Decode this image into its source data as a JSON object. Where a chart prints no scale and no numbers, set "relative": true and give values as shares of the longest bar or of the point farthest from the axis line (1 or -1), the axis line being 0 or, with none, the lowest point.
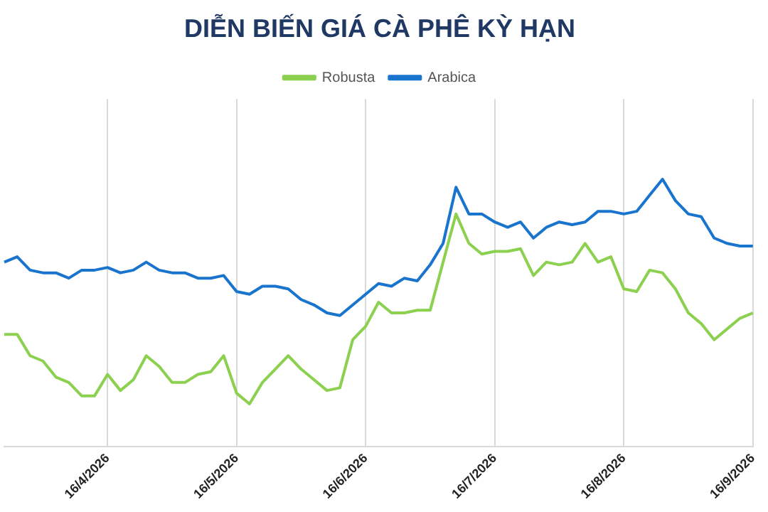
{
  "chart_data": {
    "type": "line",
    "title": "DIỄN BIẾN GIÁ CÀ PHÊ KỲ HẠN",
    "relative": true,
    "grid": "x",
    "legend": "top",
    "categories": [
      null,
      null,
      null,
      null,
      null,
      null,
      null,
      null,
      "16/4/2026",
      null,
      null,
      null,
      null,
      null,
      null,
      null,
      null,
      null,
      "16/5/2026",
      null,
      null,
      null,
      null,
      null,
      null,
      null,
      null,
      null,
      "16/6/2026",
      null,
      null,
      null,
      null,
      null,
      null,
      null,
      null,
      null,
      "16/7/2026",
      null,
      null,
      null,
      null,
      null,
      null,
      null,
      null,
      null,
      "16/8/2026",
      null,
      null,
      null,
      null,
      null,
      null,
      null,
      null,
      null,
      "16/9/2026"
    ],
    "series": [
      {
        "name": "Robusta",
        "color": "#8cd04f",
        "values": [
          0.42,
          0.42,
          0.34,
          0.32,
          0.26,
          0.24,
          0.19,
          0.19,
          0.27,
          0.21,
          0.25,
          0.34,
          0.3,
          0.24,
          0.24,
          0.27,
          0.28,
          0.34,
          0.2,
          0.16,
          0.24,
          0.29,
          0.34,
          0.29,
          0.25,
          0.21,
          0.22,
          0.4,
          0.45,
          0.54,
          0.5,
          0.5,
          0.51,
          0.51,
          0.69,
          0.87,
          0.76,
          0.72,
          0.73,
          0.73,
          0.74,
          0.64,
          0.69,
          0.68,
          0.69,
          0.76,
          0.69,
          0.71,
          0.59,
          0.58,
          0.66,
          0.65,
          0.59,
          0.5,
          0.46,
          0.4,
          0.44,
          0.48,
          0.5
        ]
      },
      {
        "name": "Arabica",
        "color": "#1874cd",
        "values": [
          0.69,
          0.71,
          0.66,
          0.65,
          0.65,
          0.63,
          0.66,
          0.66,
          0.67,
          0.65,
          0.66,
          0.69,
          0.66,
          0.65,
          0.65,
          0.63,
          0.63,
          0.64,
          0.58,
          0.57,
          0.6,
          0.6,
          0.59,
          0.55,
          0.53,
          0.5,
          0.49,
          0.53,
          0.57,
          0.61,
          0.6,
          0.63,
          0.62,
          0.68,
          0.76,
          0.97,
          0.87,
          0.87,
          0.84,
          0.82,
          0.84,
          0.78,
          0.82,
          0.84,
          0.83,
          0.84,
          0.88,
          0.88,
          0.87,
          0.88,
          0.94,
          1,
          0.92,
          0.87,
          0.86,
          0.78,
          0.76,
          0.75,
          0.75
        ]
      }
    ]
  }
}
